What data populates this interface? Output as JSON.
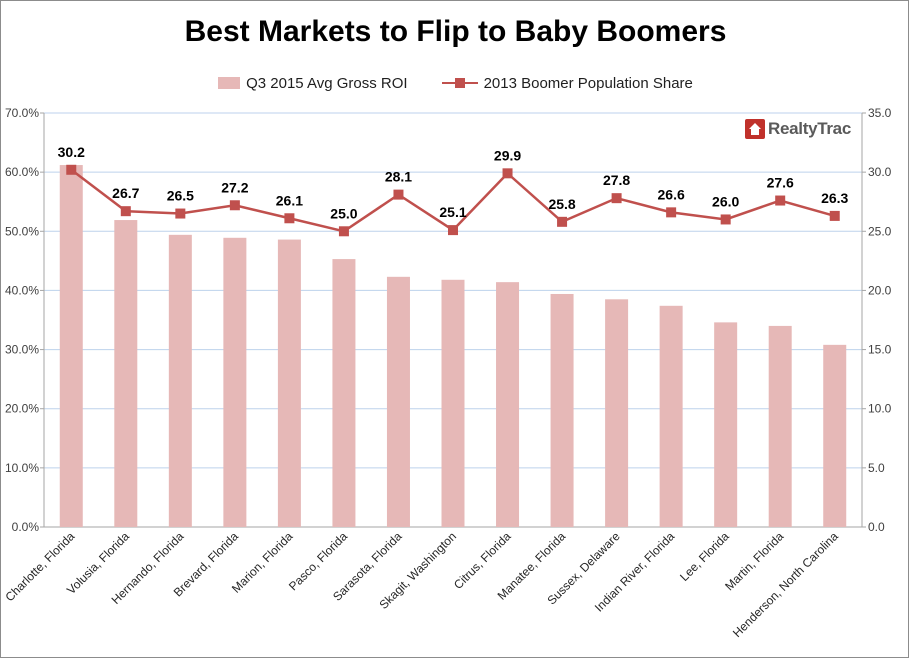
{
  "title": "Best Markets to Flip to Baby Boomers",
  "logo_text": "RealtyTrac",
  "colors": {
    "bar": "#e6b8b7",
    "line": "#c0504d",
    "grid": "#bdd2ec",
    "axis": "#a6a6a6"
  },
  "chart_data": {
    "type": "bar",
    "title": "Best Markets to Flip to Baby Boomers",
    "categories": [
      "Charlotte, Florida",
      "Volusia, Florida",
      "Hernando, Florida",
      "Brevard, Florida",
      "Marion, Florida",
      "Pasco, Florida",
      "Sarasota, Florida",
      "Skagit, Washington",
      "Citrus, Florida",
      "Manatee, Florida",
      "Sussex, Delaware",
      "Indian River, Florida",
      "Lee, Florida",
      "Martin, Florida",
      "Henderson, North Carolina"
    ],
    "series": [
      {
        "name": "Q3 2015 Avg Gross ROI",
        "type": "bar",
        "axis": "left",
        "values": [
          61.2,
          51.9,
          49.4,
          48.9,
          48.6,
          45.3,
          42.3,
          41.8,
          41.4,
          39.4,
          38.5,
          37.4,
          34.6,
          34.0,
          30.8
        ]
      },
      {
        "name": "2013 Boomer Population Share",
        "type": "line",
        "axis": "right",
        "values": [
          30.2,
          26.7,
          26.5,
          27.2,
          26.1,
          25.0,
          28.1,
          25.1,
          29.9,
          25.8,
          27.8,
          26.6,
          26.0,
          27.6,
          26.3
        ]
      }
    ],
    "data_labels": [
      "30.2",
      "26.7",
      "26.5",
      "27.2",
      "26.1",
      "25.0",
      "28.1",
      "25.1",
      "29.9",
      "25.8",
      "27.8",
      "26.6",
      "26.0",
      "27.6",
      "26.3"
    ],
    "y_left": {
      "ylim": [
        0,
        70
      ],
      "ticks": [
        "0.0%",
        "10.0%",
        "20.0%",
        "30.0%",
        "40.0%",
        "50.0%",
        "60.0%",
        "70.0%"
      ]
    },
    "y_right": {
      "ylim": [
        0,
        35
      ],
      "ticks": [
        "0.0",
        "5.0",
        "10.0",
        "15.0",
        "20.0",
        "25.0",
        "30.0",
        "35.0"
      ]
    },
    "grid": true,
    "legend": "top"
  }
}
